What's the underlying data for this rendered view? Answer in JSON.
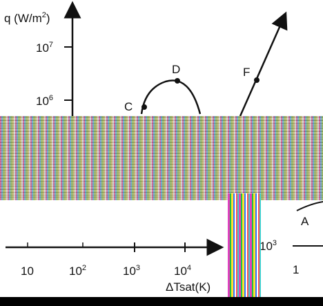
{
  "y_axis": {
    "label": {
      "base": "q (W/m",
      "exp": "2",
      "tail": ")"
    },
    "ticks": [
      {
        "base": "10",
        "exp": "7"
      },
      {
        "base": "10",
        "exp": "6"
      }
    ]
  },
  "x_axis": {
    "label": "ΔTsat(K)",
    "ticks": [
      {
        "base": "10",
        "exp": ""
      },
      {
        "base": "10",
        "exp": "2"
      },
      {
        "base": "10",
        "exp": "3"
      },
      {
        "base": "10",
        "exp": "4"
      }
    ]
  },
  "points": [
    "C",
    "D",
    "F"
  ],
  "fragment": {
    "point": "A",
    "tick": {
      "base": "10",
      "exp": "3"
    },
    "x_tick": "1"
  }
}
